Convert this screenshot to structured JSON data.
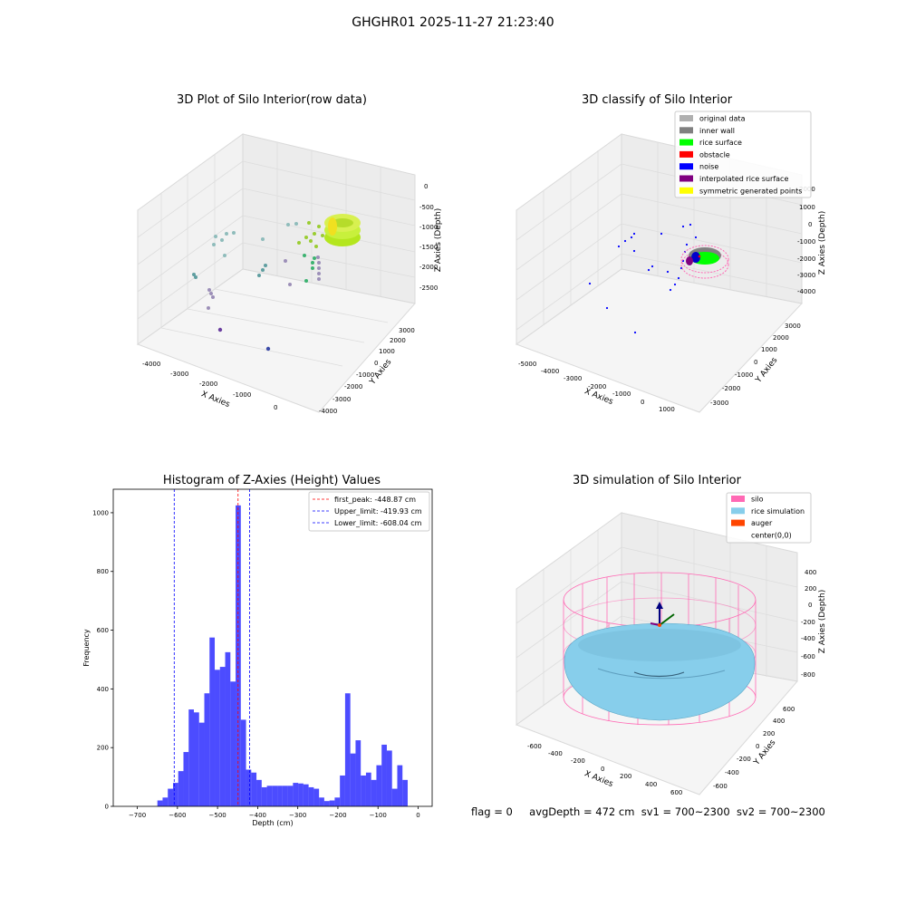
{
  "figure_title": "GHGHR01 2025-11-27 21:23:40",
  "panels": {
    "raw": {
      "title": "3D Plot of Silo Interior(row data)",
      "xlabel": "X Axies",
      "ylabel": "Y Axies",
      "zlabel": "Z Axies (Depth)",
      "x_ticks": [
        "-4000",
        "-3000",
        "-2000",
        "-1000",
        "0"
      ],
      "y_ticks": [
        "-4000",
        "-3000",
        "-2000",
        "-1000",
        "0",
        "1000",
        "2000",
        "3000"
      ],
      "z_ticks": [
        "0",
        "-500",
        "-1000",
        "-1500",
        "-2000",
        "-2500"
      ]
    },
    "classify": {
      "title": "3D classify of Silo Interior",
      "xlabel": "X Axies",
      "ylabel": "Y Axies",
      "zlabel": "Z Axies (Depth)",
      "x_ticks": [
        "-5000",
        "-4000",
        "-3000",
        "-2000",
        "-1000",
        "0",
        "1000"
      ],
      "y_ticks": [
        "-3000",
        "-2000",
        "-1000",
        "0",
        "1000",
        "2000",
        "3000"
      ],
      "z_ticks": [
        "2000",
        "1000",
        "0",
        "-1000",
        "-2000",
        "-3000",
        "-4000"
      ],
      "legend": [
        {
          "label": "original data",
          "color": "#b0b0b0"
        },
        {
          "label": "inner wall",
          "color": "#808080"
        },
        {
          "label": "rice surface",
          "color": "#00ff00"
        },
        {
          "label": "obstacle",
          "color": "#ff0000"
        },
        {
          "label": "noise",
          "color": "#0000ff"
        },
        {
          "label": "interpolated rice surface",
          "color": "#800080"
        },
        {
          "label": "symmetric generated points",
          "color": "#ffff00"
        }
      ]
    },
    "simulation": {
      "title": "3D simulation of Silo Interior",
      "xlabel": "X Axies",
      "ylabel": "Y Axies",
      "zlabel": "Z Axies (Depth)",
      "x_ticks": [
        "-600",
        "-400",
        "-200",
        "0",
        "200",
        "400",
        "600"
      ],
      "y_ticks": [
        "-600",
        "-400",
        "-200",
        "0",
        "200",
        "400",
        "600"
      ],
      "z_ticks": [
        "400",
        "200",
        "0",
        "-200",
        "-400",
        "-600",
        "-800"
      ],
      "legend": [
        {
          "label": "silo",
          "color": "#ff69b4"
        },
        {
          "label": "rice simulation",
          "color": "#87ceeb"
        },
        {
          "label": "auger",
          "color": "#ff4500"
        },
        {
          "label": "center(0,0)",
          "color": ""
        }
      ]
    }
  },
  "chart_data": {
    "type": "bar",
    "title": "Histogram of Z-Axies (Height) Values",
    "xlabel": "Depth (cm)",
    "ylabel": "Frequency",
    "xlim": [
      -760,
      35
    ],
    "ylim": [
      0,
      1080
    ],
    "x_ticks": [
      -700,
      -600,
      -500,
      -400,
      -300,
      -200,
      -100,
      0
    ],
    "y_ticks": [
      0,
      200,
      400,
      600,
      800,
      1000
    ],
    "bin_width": 13,
    "bar_color": "#0000ff",
    "bins": [
      {
        "x0": -650,
        "count": 20
      },
      {
        "x0": -637,
        "count": 30
      },
      {
        "x0": -624,
        "count": 60
      },
      {
        "x0": -611,
        "count": 80
      },
      {
        "x0": -598,
        "count": 120
      },
      {
        "x0": -585,
        "count": 185
      },
      {
        "x0": -572,
        "count": 330
      },
      {
        "x0": -559,
        "count": 320
      },
      {
        "x0": -546,
        "count": 285
      },
      {
        "x0": -533,
        "count": 385
      },
      {
        "x0": -520,
        "count": 575
      },
      {
        "x0": -507,
        "count": 465
      },
      {
        "x0": -494,
        "count": 475
      },
      {
        "x0": -481,
        "count": 525
      },
      {
        "x0": -468,
        "count": 425
      },
      {
        "x0": -455,
        "count": 1025
      },
      {
        "x0": -442,
        "count": 295
      },
      {
        "x0": -429,
        "count": 125
      },
      {
        "x0": -416,
        "count": 115
      },
      {
        "x0": -403,
        "count": 90
      },
      {
        "x0": -390,
        "count": 65
      },
      {
        "x0": -377,
        "count": 70
      },
      {
        "x0": -364,
        "count": 70
      },
      {
        "x0": -351,
        "count": 70
      },
      {
        "x0": -338,
        "count": 70
      },
      {
        "x0": -325,
        "count": 70
      },
      {
        "x0": -312,
        "count": 80
      },
      {
        "x0": -299,
        "count": 78
      },
      {
        "x0": -286,
        "count": 75
      },
      {
        "x0": -273,
        "count": 65
      },
      {
        "x0": -260,
        "count": 60
      },
      {
        "x0": -247,
        "count": 30
      },
      {
        "x0": -234,
        "count": 18
      },
      {
        "x0": -221,
        "count": 20
      },
      {
        "x0": -208,
        "count": 30
      },
      {
        "x0": -195,
        "count": 105
      },
      {
        "x0": -182,
        "count": 385
      },
      {
        "x0": -169,
        "count": 180
      },
      {
        "x0": -156,
        "count": 225
      },
      {
        "x0": -143,
        "count": 105
      },
      {
        "x0": -130,
        "count": 115
      },
      {
        "x0": -117,
        "count": 90
      },
      {
        "x0": -104,
        "count": 140
      },
      {
        "x0": -91,
        "count": 210
      },
      {
        "x0": -78,
        "count": 190
      },
      {
        "x0": -65,
        "count": 60
      },
      {
        "x0": -52,
        "count": 140
      },
      {
        "x0": -39,
        "count": 90
      }
    ],
    "vlines": [
      {
        "label": "first_peak: -448.87 cm",
        "x": -448.87,
        "color": "#ff0000"
      },
      {
        "label": "Upper_limit: -419.93 cm",
        "x": -419.93,
        "color": "#0000ff"
      },
      {
        "label": "Lower_limit: -608.04 cm",
        "x": -608.04,
        "color": "#0000ff"
      }
    ]
  },
  "footer": {
    "flag": "flag = 0",
    "avg_depth": "avgDepth = 472 cm",
    "sv1": "sv1 = 700~2300",
    "sv2": "sv2 = 700~2300"
  }
}
